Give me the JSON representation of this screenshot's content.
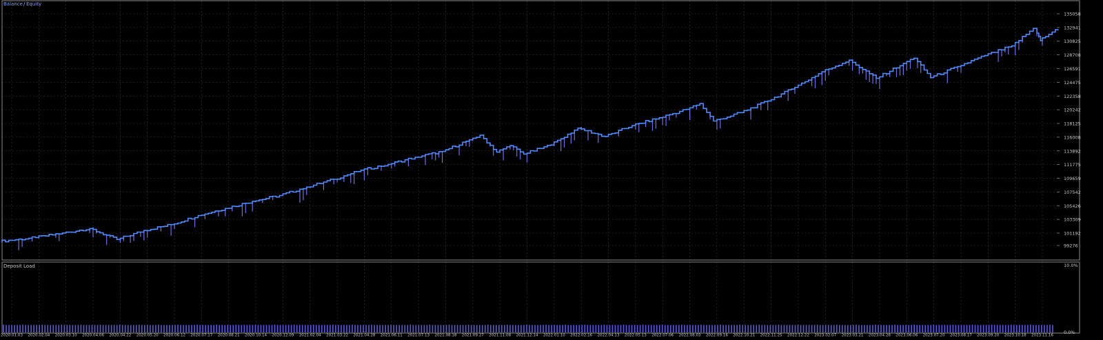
{
  "colors": {
    "background": "#000000",
    "grid": "#3a3a3a",
    "frame": "#8c8c8c",
    "separator": "#c8c8c8",
    "balance": "#4f8bff",
    "equity": "#6e6ef0",
    "deposit_load": "#5a5ae6",
    "text": "#c8c8c8",
    "legend_balance": "#6fa0ff",
    "legend_equity": "#9a9aff"
  },
  "legend": {
    "balance": "Balance",
    "separator": "/",
    "equity": "Equity"
  },
  "chart_data": [
    {
      "type": "line",
      "title": "",
      "legend_placement": "top-left",
      "grid": true,
      "series_names": [
        "Balance",
        "Equity"
      ],
      "y_tick_labels": [
        "99276",
        "101192",
        "103309",
        "105426",
        "107542",
        "109659",
        "111775",
        "113892",
        "116008",
        "118125",
        "120242",
        "122358",
        "124475",
        "126591",
        "128708",
        "130825",
        "132941",
        "135058"
      ],
      "ylim": [
        98400,
        136200
      ],
      "x_tick_labels": [
        "2020.01.03",
        "2020.02.04",
        "2020.03.10",
        "2020.04.06",
        "2020.04.22",
        "2020.05.20",
        "2020.06.12",
        "2020.07.17",
        "2020.08.21",
        "2020.10.14",
        "2020.12.09",
        "2021.02.04",
        "2021.03.22",
        "2021.04.28",
        "2021.06.11",
        "2021.07.13",
        "2021.08.18",
        "2021.09.27",
        "2021.11.08",
        "2021.12.14",
        "2022.01.10",
        "2022.02.16",
        "2022.04.13",
        "2022.05.13",
        "2022.07.06",
        "2022.08.03",
        "2022.09.16",
        "2022.10.21",
        "2022.11.25",
        "2022.12.22",
        "2023.02.07",
        "2023.03.21",
        "2023.04.28",
        "2023.06.06",
        "2023.07.20",
        "2023.08.17",
        "2023.09.20",
        "2023.10.18",
        "2023.11.16"
      ],
      "series": [
        {
          "name": "Balance",
          "x_index": [
            0,
            1,
            2,
            3,
            4,
            5,
            6,
            7,
            8,
            9,
            10,
            11,
            12,
            13,
            14,
            15,
            16,
            17,
            17.4,
            18,
            18.5,
            19,
            20,
            21,
            22,
            23,
            24,
            25,
            25.5,
            26,
            27,
            28,
            29,
            30,
            31,
            32,
            33,
            33.4,
            34,
            35,
            36,
            37,
            37.8,
            38,
            38.6
          ],
          "values": [
            99900,
            100500,
            101200,
            101900,
            100200,
            101600,
            102500,
            103900,
            105000,
            106100,
            107000,
            108300,
            109500,
            110900,
            111800,
            112900,
            113800,
            115600,
            116300,
            113700,
            114700,
            113400,
            114800,
            117400,
            116100,
            117800,
            119000,
            120300,
            121200,
            118500,
            119800,
            121600,
            123700,
            126100,
            127900,
            125100,
            127400,
            128200,
            125200,
            126900,
            128600,
            130100,
            132800,
            130900,
            132600
          ]
        }
      ]
    },
    {
      "type": "bar",
      "title": "Deposit Load",
      "y_tick_labels": [
        "10.0%",
        "0.0%"
      ],
      "ylim": [
        0,
        10
      ],
      "bar_count": 380,
      "typical_value": 1.2
    }
  ]
}
